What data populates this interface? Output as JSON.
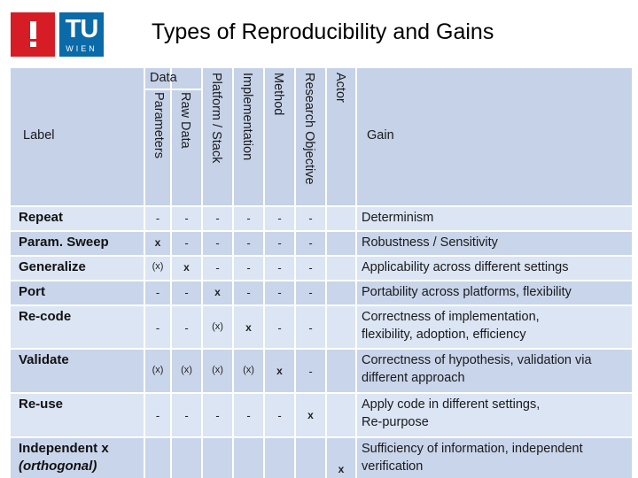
{
  "header": {
    "title": "Types of Reproducibility and Gains",
    "logo_text": "TU",
    "logo_subtext": "WIEN"
  },
  "table": {
    "label_header": "Label",
    "gain_header": "Gain",
    "data_group": "Data",
    "columns": [
      "Parameters",
      "Raw Data",
      "Platform / Stack",
      "Implementation",
      "Method",
      "Research Objective",
      "Actor"
    ],
    "rows": [
      {
        "label": "Repeat",
        "marks": [
          "-",
          "-",
          "-",
          "-",
          "-",
          "-",
          ""
        ],
        "gain": [
          "Determinism"
        ]
      },
      {
        "label": "Param. Sweep",
        "marks": [
          "x",
          "-",
          "-",
          "-",
          "-",
          "-",
          ""
        ],
        "gain": [
          "Robustness / Sensitivity"
        ]
      },
      {
        "label": "Generalize",
        "marks": [
          "(x)",
          "x",
          "-",
          "-",
          "-",
          "-",
          ""
        ],
        "gain": [
          "Applicability across different settings"
        ]
      },
      {
        "label": "Port",
        "marks": [
          "-",
          "-",
          "x",
          "-",
          "-",
          "-",
          ""
        ],
        "gain": [
          "Portability across platforms, flexibility"
        ]
      },
      {
        "label": "Re-code",
        "marks": [
          "-",
          "-",
          "(x)",
          "x",
          "-",
          "-",
          ""
        ],
        "gain": [
          "Correctness of implementation,",
          "flexibility, adoption, efficiency"
        ]
      },
      {
        "label": "Validate",
        "marks": [
          "(x)",
          "(x)",
          "(x)",
          "(x)",
          "x",
          "-",
          ""
        ],
        "gain": [
          "Correctness of hypothesis, validation via",
          "different approach"
        ]
      },
      {
        "label": "Re-use",
        "marks": [
          "-",
          "-",
          "-",
          "-",
          "-",
          "x",
          ""
        ],
        "gain": [
          "Apply code in different settings,",
          "Re-purpose"
        ]
      },
      {
        "label": "Independent x",
        "label2": "(orthogonal)",
        "marks": [
          "",
          "",
          "",
          "",
          "",
          "",
          "x"
        ],
        "gain": [
          "Sufficiency of information, independent",
          "verification"
        ]
      }
    ]
  },
  "colors": {
    "header_bg": "#c5d2e8",
    "row_bg": "#dbe5f3",
    "row_bg_alt": "#c9d5ea",
    "logo_red": "#d61c24",
    "logo_blue": "#0b6aa8"
  }
}
